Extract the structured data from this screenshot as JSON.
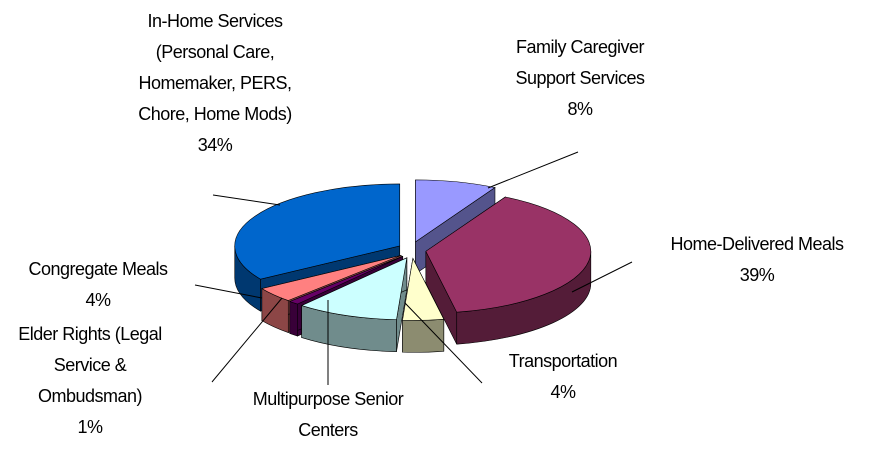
{
  "chart_data": {
    "type": "pie3d",
    "categories": [
      [
        "Family Caregiver",
        "Support Services"
      ],
      [
        "Home-Delivered Meals"
      ],
      [
        "Transportation"
      ],
      [
        "Multipurpose Senior",
        "Centers"
      ],
      [
        "Elder Rights (Legal",
        "Service &",
        "Ombudsman)"
      ],
      [
        "Congregate Meals"
      ],
      [
        "In-Home Services",
        "(Personal Care,",
        "Homemaker, PERS,",
        "Chore, Home Mods)"
      ]
    ],
    "values": [
      8,
      39,
      4,
      10,
      1,
      4,
      34
    ],
    "value_labels": [
      "8%",
      "39%",
      "4%",
      null,
      "1%",
      "4%",
      "34%"
    ],
    "colors": [
      "#9999ff",
      "#993366",
      "#ffffcc",
      "#ccffff",
      "#660066",
      "#ff8080",
      "#0066cc"
    ]
  }
}
